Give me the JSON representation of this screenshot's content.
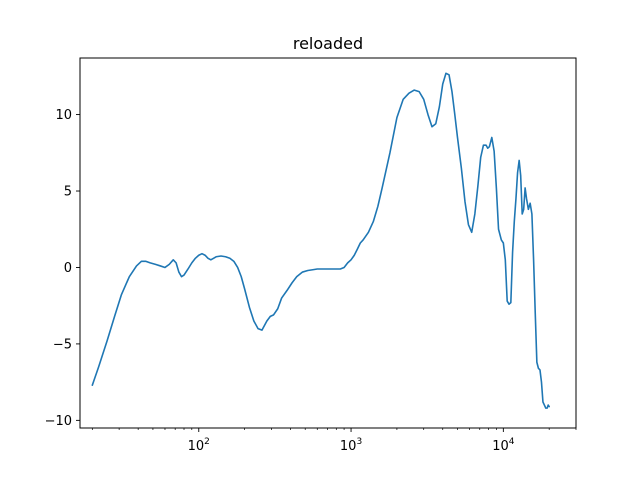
{
  "chart_data": {
    "type": "line",
    "title": "reloaded",
    "xlabel": "",
    "ylabel": "",
    "xscale": "log",
    "xlim": [
      16.6,
      30000
    ],
    "ylim": [
      -10.5,
      13.7
    ],
    "grid": false,
    "line_color": "#1f77b4",
    "x_ticks": [
      {
        "value": 100,
        "base": "10",
        "exp": "2"
      },
      {
        "value": 1000,
        "base": "10",
        "exp": "3"
      },
      {
        "value": 10000,
        "base": "10",
        "exp": "4"
      }
    ],
    "y_ticks": [
      {
        "value": 10,
        "label": "10"
      },
      {
        "value": 5,
        "label": "5"
      },
      {
        "value": 0,
        "label": "0"
      },
      {
        "value": -5,
        "label": "−5"
      },
      {
        "value": -10,
        "label": "−10"
      }
    ],
    "series": [
      {
        "x": [
          20,
          22,
          25,
          28,
          31,
          35,
          39,
          42,
          45,
          48,
          52,
          56,
          60,
          64,
          68,
          71,
          74,
          77,
          80,
          85,
          90,
          95,
          100,
          105,
          110,
          115,
          120,
          125,
          130,
          140,
          150,
          160,
          170,
          180,
          190,
          200,
          215,
          230,
          245,
          260,
          280,
          295,
          310,
          330,
          350,
          380,
          410,
          440,
          480,
          520,
          560,
          600,
          650,
          700,
          750,
          800,
          850,
          900,
          950,
          1000,
          1050,
          1100,
          1150,
          1200,
          1300,
          1400,
          1500,
          1600,
          1800,
          2000,
          2200,
          2400,
          2600,
          2800,
          3000,
          3200,
          3400,
          3600,
          3800,
          4000,
          4200,
          4400,
          4600,
          4800,
          5000,
          5300,
          5600,
          5900,
          6200,
          6500,
          6800,
          7100,
          7400,
          7700,
          7900,
          8100,
          8400,
          8700,
          9000,
          9300,
          9700,
          10000,
          10300,
          10600,
          10900,
          11200,
          11500,
          11800,
          12100,
          12400,
          12700,
          13000,
          13300,
          13600,
          13900,
          14200,
          14600,
          15000,
          15400,
          15800,
          16200,
          16600,
          17000,
          17400,
          17800,
          18200,
          18600,
          19000,
          19400,
          19700,
          20000
        ],
        "y": [
          -7.7,
          -6.5,
          -4.8,
          -3.2,
          -1.8,
          -0.6,
          0.1,
          0.4,
          0.4,
          0.3,
          0.2,
          0.1,
          0.0,
          0.2,
          0.5,
          0.3,
          -0.3,
          -0.6,
          -0.5,
          -0.1,
          0.3,
          0.6,
          0.8,
          0.9,
          0.8,
          0.6,
          0.5,
          0.6,
          0.7,
          0.75,
          0.7,
          0.6,
          0.4,
          0.0,
          -0.6,
          -1.4,
          -2.6,
          -3.5,
          -4.0,
          -4.1,
          -3.5,
          -3.2,
          -3.1,
          -2.7,
          -2.0,
          -1.5,
          -1.0,
          -0.6,
          -0.3,
          -0.2,
          -0.15,
          -0.1,
          -0.1,
          -0.1,
          -0.1,
          -0.1,
          -0.1,
          0.0,
          0.3,
          0.5,
          0.8,
          1.2,
          1.6,
          1.8,
          2.3,
          3.0,
          4.0,
          5.2,
          7.5,
          9.8,
          11.0,
          11.4,
          11.6,
          11.5,
          11.0,
          10.0,
          9.2,
          9.4,
          10.5,
          12.0,
          12.7,
          12.6,
          11.5,
          10.0,
          8.5,
          6.5,
          4.3,
          2.8,
          2.3,
          3.5,
          5.3,
          7.2,
          8.0,
          8.0,
          7.8,
          7.9,
          8.5,
          7.6,
          5.2,
          2.5,
          1.8,
          1.6,
          0.5,
          -2.2,
          -2.4,
          -2.3,
          1.0,
          3.0,
          4.5,
          6.2,
          7.0,
          6.0,
          3.5,
          3.8,
          5.2,
          4.5,
          3.8,
          4.2,
          3.5,
          0.5,
          -3.0,
          -6.2,
          -6.6,
          -6.7,
          -7.5,
          -8.8,
          -9.0,
          -9.2,
          -9.2,
          -9.0,
          -9.1
        ]
      }
    ]
  }
}
